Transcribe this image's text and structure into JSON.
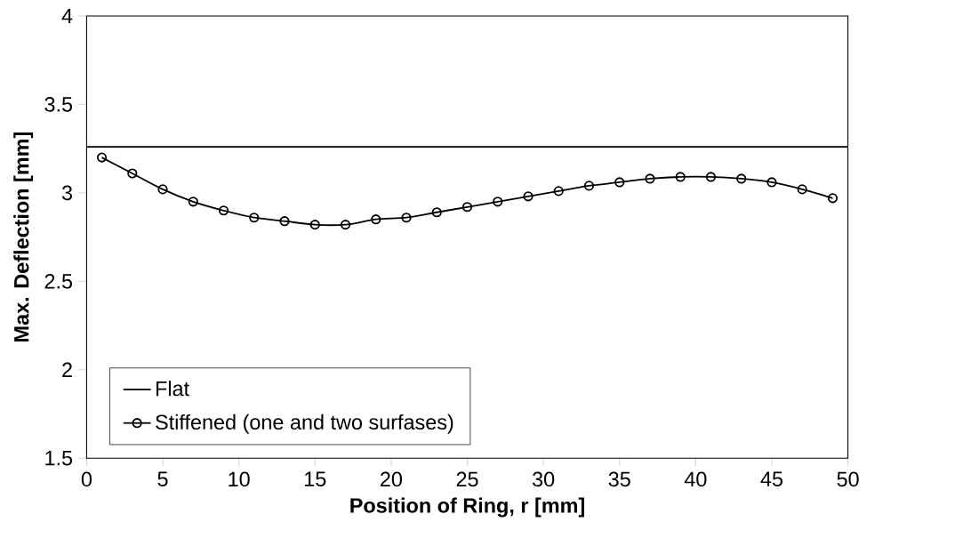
{
  "chart_data": {
    "type": "line",
    "xlabel": "Position of Ring, r [mm]",
    "ylabel": "Max. Deflection [mm]",
    "xlim": [
      0,
      50
    ],
    "ylim": [
      1.5,
      4
    ],
    "xticks": [
      0,
      5,
      10,
      15,
      20,
      25,
      30,
      35,
      40,
      45,
      50
    ],
    "yticks": [
      1.5,
      2,
      2.5,
      3,
      3.5,
      4
    ],
    "grid": false,
    "legend": "bottom left",
    "line_style": "solid",
    "series": [
      {
        "name": "Flat",
        "color": "#000000",
        "marker": "none",
        "x": [
          0,
          50
        ],
        "values": [
          3.26,
          3.26
        ]
      },
      {
        "name": "Stiffened (one and two surfases)",
        "color": "#000000",
        "marker": "circle",
        "x": [
          1,
          3,
          5,
          7,
          9,
          11,
          13,
          15,
          17,
          19,
          21,
          23,
          25,
          27,
          29,
          31,
          33,
          35,
          37,
          39,
          41,
          43,
          45,
          47,
          49
        ],
        "values": [
          3.2,
          3.11,
          3.02,
          2.95,
          2.9,
          2.86,
          2.84,
          2.82,
          2.82,
          2.85,
          2.86,
          2.89,
          2.92,
          2.95,
          2.98,
          3.01,
          3.04,
          3.06,
          3.08,
          3.09,
          3.09,
          3.08,
          3.06,
          3.02,
          2.97
        ]
      }
    ]
  }
}
